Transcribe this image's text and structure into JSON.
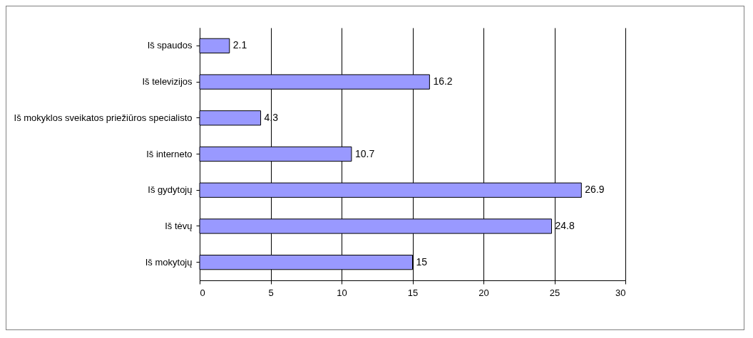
{
  "chart_data": {
    "type": "bar",
    "orientation": "horizontal",
    "categories": [
      "Iš spaudos",
      "Iš televizijos",
      "Iš mokyklos sveikatos priežiūros specialisto",
      "Iš interneto",
      "Iš gydytojų",
      "Iš tėvų",
      "Iš mokytojų"
    ],
    "values": [
      2.1,
      16.2,
      4.3,
      10.7,
      26.9,
      24.8,
      15
    ],
    "color": "#9999ff",
    "xlim": [
      0,
      30
    ],
    "xticks": [
      0,
      5,
      10,
      15,
      20,
      25,
      30
    ],
    "grid": "x",
    "data_labels": true
  }
}
